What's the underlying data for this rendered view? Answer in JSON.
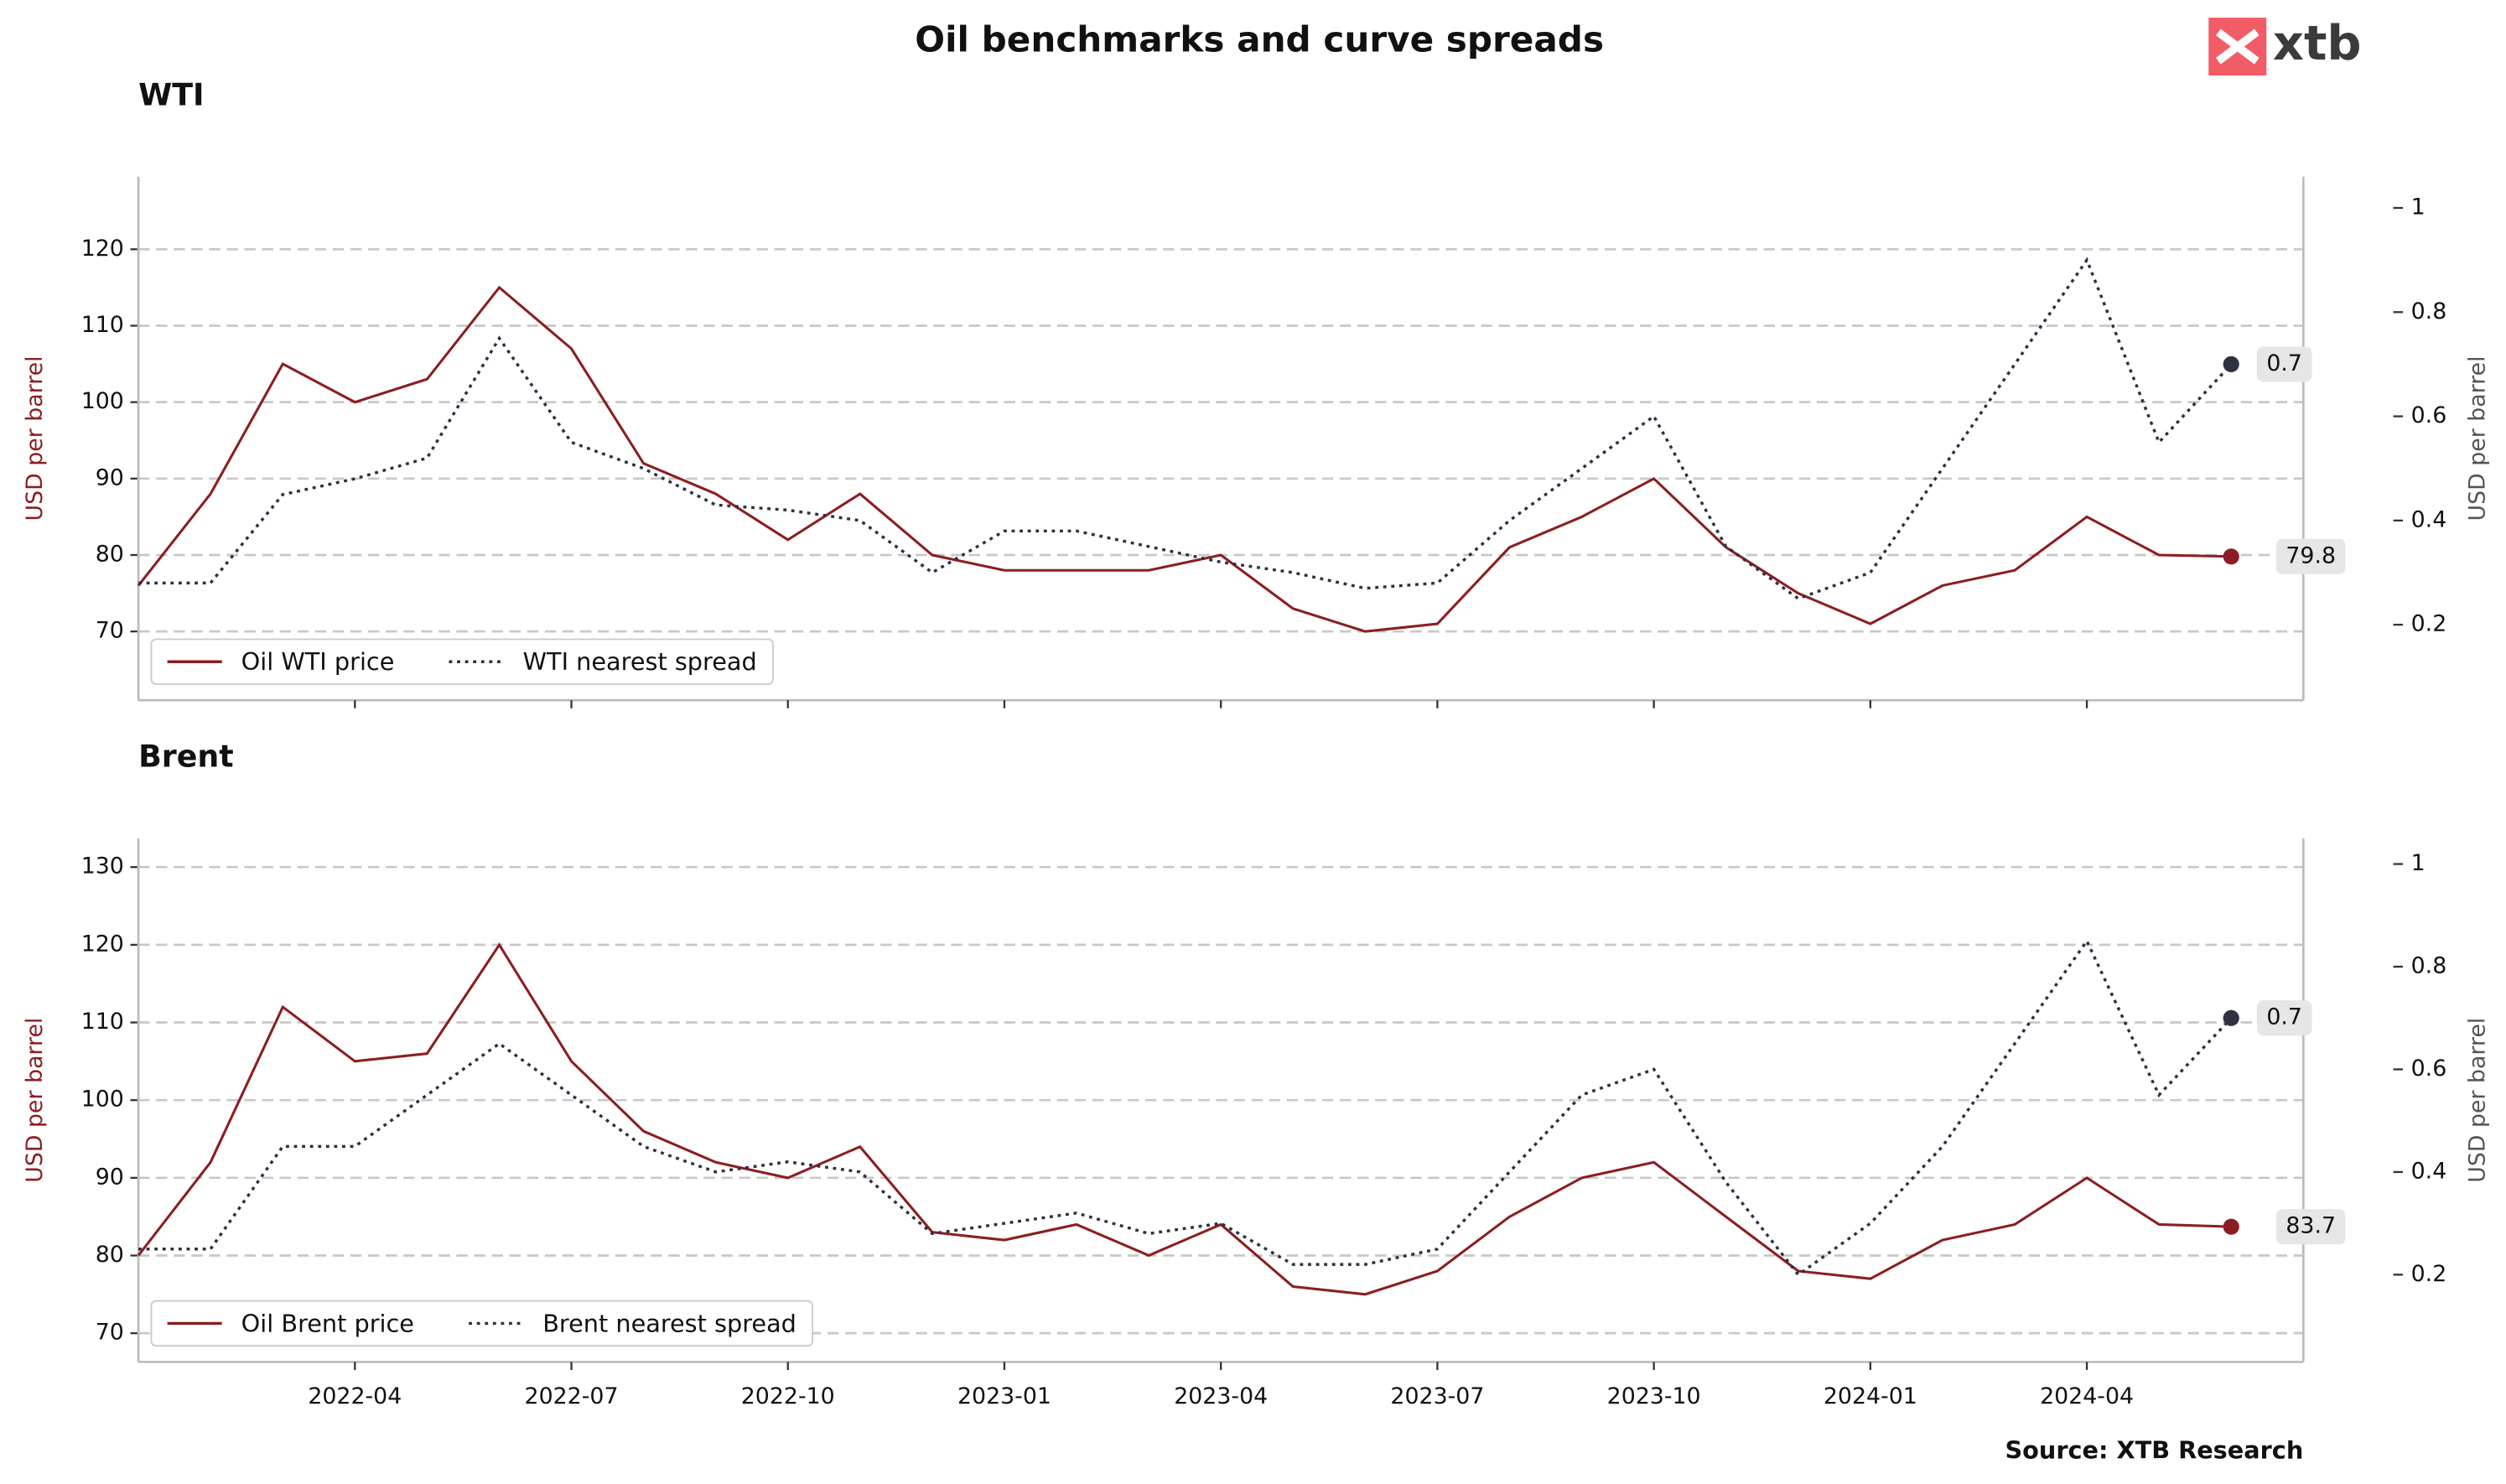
{
  "title": "Oil benchmarks and curve spreads",
  "logo": "xtb",
  "source": "Source: XTB Research",
  "chart_data": [
    {
      "type": "line",
      "title": "WTI",
      "ylabel": "USD per barrel",
      "y2label": "USD per barrel",
      "x": [
        "2022-01",
        "2022-02",
        "2022-03",
        "2022-04",
        "2022-05",
        "2022-06",
        "2022-07",
        "2022-08",
        "2022-09",
        "2022-10",
        "2022-11",
        "2022-12",
        "2023-01",
        "2023-02",
        "2023-03",
        "2023-04",
        "2023-05",
        "2023-06",
        "2023-07",
        "2023-08",
        "2023-09",
        "2023-10",
        "2023-11",
        "2023-12",
        "2024-01",
        "2024-02",
        "2024-03",
        "2024-04",
        "2024-05",
        "2024-06"
      ],
      "xlim": [
        "2022-01",
        "2024-07"
      ],
      "ylim": [
        61,
        129.5
      ],
      "yticks": [
        70,
        80,
        90,
        100,
        110,
        120
      ],
      "y2lim": [
        0.055,
        1.06
      ],
      "y2ticks": [
        0.2,
        0.4,
        0.6,
        0.8,
        1.0
      ],
      "grid": true,
      "legend": "lower left",
      "series": [
        {
          "name": "Oil WTI price",
          "color": "#8b1e22",
          "line_style": "solid",
          "values": [
            76,
            88,
            105,
            100,
            103,
            115,
            107,
            92,
            88,
            82,
            88,
            80,
            78,
            78,
            78,
            80,
            73,
            70,
            71,
            81,
            85,
            90,
            81,
            75,
            71,
            76,
            78,
            85,
            80,
            79.8
          ]
        },
        {
          "name": "WTI nearest spread",
          "color": "#2d3142",
          "line_style": "dotted",
          "axis": "y2",
          "values": [
            0.28,
            0.28,
            0.45,
            0.48,
            0.52,
            0.75,
            0.55,
            0.5,
            0.43,
            0.42,
            0.4,
            0.3,
            0.38,
            0.38,
            0.35,
            0.32,
            0.3,
            0.27,
            0.28,
            0.4,
            0.5,
            0.6,
            0.35,
            0.25,
            0.3,
            0.5,
            0.7,
            0.9,
            0.55,
            0.7
          ]
        }
      ]
    },
    {
      "type": "line",
      "title": "Brent",
      "ylabel": "USD per barrel",
      "y2label": "USD per barrel",
      "x": [
        "2022-01",
        "2022-02",
        "2022-03",
        "2022-04",
        "2022-05",
        "2022-06",
        "2022-07",
        "2022-08",
        "2022-09",
        "2022-10",
        "2022-11",
        "2022-12",
        "2023-01",
        "2023-02",
        "2023-03",
        "2023-04",
        "2023-05",
        "2023-06",
        "2023-07",
        "2023-08",
        "2023-09",
        "2023-10",
        "2023-11",
        "2023-12",
        "2024-01",
        "2024-02",
        "2024-03",
        "2024-04",
        "2024-05",
        "2024-06"
      ],
      "xlim": [
        "2022-01",
        "2024-07"
      ],
      "xticks": [
        "2022-04",
        "2022-07",
        "2022-10",
        "2023-01",
        "2023-04",
        "2023-07",
        "2023-10",
        "2024-01",
        "2024-04"
      ],
      "ylim": [
        66.3,
        133.7
      ],
      "yticks": [
        70,
        80,
        90,
        100,
        110,
        120,
        130
      ],
      "y2lim": [
        0.03,
        1.05
      ],
      "y2ticks": [
        0.2,
        0.4,
        0.6,
        0.8,
        1.0
      ],
      "grid": true,
      "legend": "lower left",
      "series": [
        {
          "name": "Oil Brent price",
          "color": "#8b1e22",
          "line_style": "solid",
          "values": [
            80,
            92,
            112,
            105,
            106,
            120,
            105,
            96,
            92,
            90,
            94,
            83,
            82,
            84,
            80,
            84,
            76,
            75,
            78,
            85,
            90,
            92,
            85,
            78,
            77,
            82,
            84,
            90,
            84,
            83.7
          ]
        },
        {
          "name": "Brent nearest spread",
          "color": "#2d3142",
          "line_style": "dotted",
          "axis": "y2",
          "values": [
            0.25,
            0.25,
            0.45,
            0.45,
            0.55,
            0.65,
            0.55,
            0.45,
            0.4,
            0.42,
            0.4,
            0.28,
            0.3,
            0.32,
            0.28,
            0.3,
            0.22,
            0.22,
            0.25,
            0.4,
            0.55,
            0.6,
            0.38,
            0.2,
            0.3,
            0.45,
            0.65,
            0.85,
            0.55,
            0.7
          ]
        }
      ]
    }
  ]
}
